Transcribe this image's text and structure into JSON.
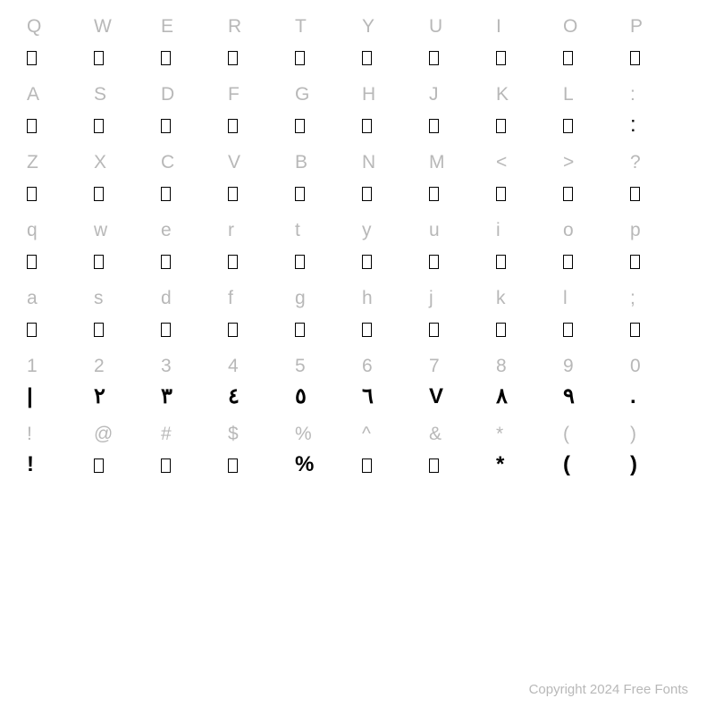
{
  "rows": [
    {
      "labels": [
        "Q",
        "W",
        "E",
        "R",
        "T",
        "Y",
        "U",
        "I",
        "O",
        "P"
      ],
      "glyphs": [
        "□",
        "□",
        "□",
        "□",
        "□",
        "□",
        "□",
        "□",
        "□",
        "□"
      ],
      "placeholder": [
        true,
        true,
        true,
        true,
        true,
        true,
        true,
        true,
        true,
        true
      ]
    },
    {
      "labels": [
        "A",
        "S",
        "D",
        "F",
        "G",
        "H",
        "J",
        "K",
        "L",
        ":"
      ],
      "glyphs": [
        "□",
        "□",
        "□",
        "□",
        "□",
        "□",
        "□",
        "□",
        "□",
        ":"
      ],
      "placeholder": [
        true,
        true,
        true,
        true,
        true,
        true,
        true,
        true,
        true,
        false
      ]
    },
    {
      "labels": [
        "Z",
        "X",
        "C",
        "V",
        "B",
        "N",
        "M",
        "<",
        ">",
        "?"
      ],
      "glyphs": [
        "□",
        "□",
        "□",
        "□",
        "□",
        "□",
        "□",
        "□",
        "□",
        "□"
      ],
      "placeholder": [
        true,
        true,
        true,
        true,
        true,
        true,
        true,
        true,
        true,
        true
      ]
    },
    {
      "labels": [
        "q",
        "w",
        "e",
        "r",
        "t",
        "y",
        "u",
        "i",
        "o",
        "p"
      ],
      "glyphs": [
        "□",
        "□",
        "□",
        "□",
        "□",
        "□",
        "□",
        "□",
        "□",
        "□"
      ],
      "placeholder": [
        true,
        true,
        true,
        true,
        true,
        true,
        true,
        true,
        true,
        true
      ]
    },
    {
      "labels": [
        "a",
        "s",
        "d",
        "f",
        "g",
        "h",
        "j",
        "k",
        "l",
        ";"
      ],
      "glyphs": [
        "□",
        "□",
        "□",
        "□",
        "□",
        "□",
        "□",
        "□",
        "□",
        "□"
      ],
      "placeholder": [
        true,
        true,
        true,
        true,
        true,
        true,
        true,
        true,
        true,
        true
      ]
    },
    {
      "labels": [
        "1",
        "2",
        "3",
        "4",
        "5",
        "6",
        "7",
        "8",
        "9",
        "0"
      ],
      "glyphs": [
        "١",
        "٢",
        "٣",
        "٤",
        "٥",
        "٦",
        "٧",
        "٨",
        "٩",
        "٠"
      ],
      "placeholder": [
        false,
        false,
        false,
        false,
        false,
        false,
        false,
        false,
        false,
        false
      ],
      "custom": [
        "|",
        "۲",
        "۳",
        "٤",
        "٥",
        "٦",
        "V",
        "٨",
        "٩",
        "."
      ]
    },
    {
      "labels": [
        "!",
        "@",
        "#",
        "$",
        "%",
        "^",
        "&",
        "*",
        "(",
        ")"
      ],
      "glyphs": [
        "!",
        "□",
        "□",
        "□",
        "%",
        "□",
        "□",
        "*",
        "(",
        ")"
      ],
      "placeholder": [
        false,
        true,
        true,
        true,
        false,
        true,
        true,
        false,
        false,
        false
      ]
    }
  ],
  "copyright": "Copyright 2024 Free Fonts",
  "styling": {
    "label_color": "#b8b8b8",
    "glyph_color": "#000000",
    "background_color": "#ffffff",
    "label_fontsize": 21,
    "glyph_fontsize": 24,
    "placeholder_width": 11,
    "placeholder_height": 16,
    "placeholder_border": "1.5px solid #000000"
  }
}
